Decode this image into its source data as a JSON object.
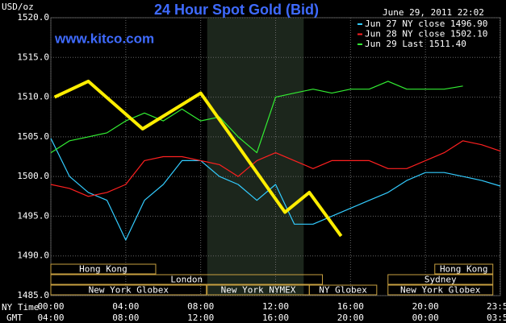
{
  "chart_data": {
    "type": "line",
    "title": "24 Hour Spot Gold (Bid)",
    "site": "www.kitco.com",
    "timestamp": "June 29, 2011 22:02",
    "y_label": "USD/oz",
    "x_label_top": "NY Time",
    "x_label_bottom": "GMT",
    "x": [
      0,
      1,
      2,
      3,
      4,
      5,
      6,
      7,
      8,
      9,
      10,
      11,
      12,
      13,
      14,
      15,
      16,
      17,
      18,
      19,
      20,
      21,
      22,
      23,
      24
    ],
    "series": [
      {
        "name": "Jun 27 NY close 1496.90",
        "color": "#33ccff",
        "values": [
          1504.8,
          1500,
          1498,
          1497,
          1492,
          1497,
          1499,
          1502,
          1502,
          1500,
          1499,
          1497,
          1499,
          1494,
          1494,
          1495,
          1496,
          1497,
          1498,
          1499.5,
          1500.5,
          1500.5,
          1500,
          1499.5,
          1498.8
        ]
      },
      {
        "name": "Jun 28 NY close 1502.10",
        "color": "#ff2020",
        "values": [
          1499,
          1498.5,
          1497.5,
          1498,
          1499,
          1502,
          1502.5,
          1502.5,
          1502,
          1501.5,
          1500,
          1502,
          1503,
          1502,
          1501,
          1502,
          1502,
          1502,
          1501,
          1501,
          1502,
          1503,
          1504.5,
          1504,
          1503.2
        ]
      },
      {
        "name": "Jun 29 Last 1511.40",
        "color": "#33ee33",
        "values": [
          1503,
          1504.5,
          1505,
          1505.5,
          1507,
          1508,
          1507,
          1508.5,
          1507,
          1507.5,
          1505,
          1503,
          1510,
          1510.5,
          1511,
          1510.5,
          1511,
          1511,
          1512,
          1511,
          1511,
          1511,
          1511.4,
          null,
          null
        ]
      },
      {
        "color": "#ffee00",
        "x": [
          0.2,
          2,
          4.9,
          8,
          12.5,
          13.8,
          15.5
        ],
        "values": [
          1510,
          1512,
          1506,
          1510.5,
          1495.5,
          1498,
          1492.5
        ]
      }
    ],
    "xlim": [
      0,
      24
    ],
    "ylim": [
      1485,
      1520
    ],
    "xticks": [
      {
        "value": 0,
        "label": "00:00"
      },
      {
        "value": 4,
        "label": "04:00"
      },
      {
        "value": 8,
        "label": "08:00"
      },
      {
        "value": 12,
        "label": "12:00"
      },
      {
        "value": 16,
        "label": "16:00"
      },
      {
        "value": 20,
        "label": "20:00"
      },
      {
        "value": 23.98,
        "label": "23:59"
      }
    ],
    "xticks_gmt": [
      "04:00",
      "08:00",
      "12:00",
      "16:00",
      "20:00",
      "00:00",
      "03:59"
    ],
    "yticks": [
      {
        "value": 1485,
        "label": "1485.0"
      },
      {
        "value": 1490,
        "label": "1490.0"
      },
      {
        "value": 1495,
        "label": "1495.0"
      },
      {
        "value": 1500,
        "label": "1500.0"
      },
      {
        "value": 1505,
        "label": "1505.0"
      },
      {
        "value": 1510,
        "label": "1510.0"
      },
      {
        "value": 1515,
        "label": "1515.0"
      },
      {
        "value": 1520,
        "label": "1520.0"
      }
    ],
    "grid": true,
    "highlight": [
      8.35,
      13.5
    ],
    "sessions": [
      {
        "label": "Hong Kong",
        "row": 0,
        "start": 0,
        "end": 5.6
      },
      {
        "label": "Hong Kong",
        "row": 0,
        "start": 20.5,
        "end": 23.6
      },
      {
        "label": "London",
        "row": 1,
        "start": 0,
        "end": 14.5
      },
      {
        "label": "Sydney",
        "row": 1,
        "start": 18,
        "end": 23.6
      },
      {
        "label": "New York Globex",
        "row": 2,
        "start": 0,
        "end": 8.3
      },
      {
        "label": "New York NYMEX",
        "row": 2,
        "start": 8.35,
        "end": 13.8
      },
      {
        "label": "NY Globex",
        "row": 2,
        "start": 13.8,
        "end": 17.4
      },
      {
        "label": "New York Globex",
        "row": 2,
        "start": 18,
        "end": 23.6
      }
    ]
  }
}
